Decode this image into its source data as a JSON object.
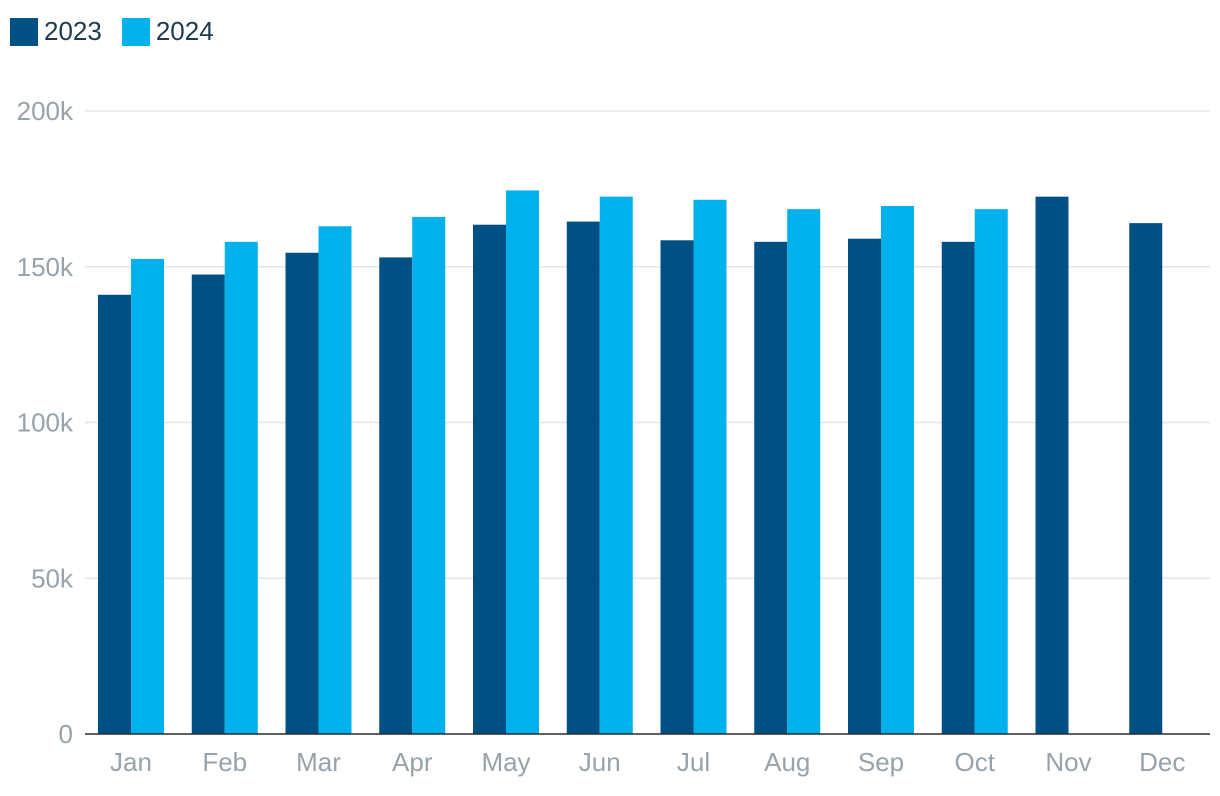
{
  "chart_data": {
    "type": "bar",
    "categories": [
      "Jan",
      "Feb",
      "Mar",
      "Apr",
      "May",
      "Jun",
      "Jul",
      "Aug",
      "Sep",
      "Oct",
      "Nov",
      "Dec"
    ],
    "series": [
      {
        "name": "2023",
        "color": "#005083",
        "values": [
          141000,
          147500,
          154500,
          153000,
          163500,
          164500,
          158500,
          158000,
          159000,
          158000,
          172500,
          164000
        ]
      },
      {
        "name": "2024",
        "color": "#00b1eb",
        "values": [
          152500,
          158000,
          163000,
          166000,
          174500,
          172500,
          171500,
          168500,
          169500,
          168500,
          null,
          null
        ]
      }
    ],
    "y_ticks": [
      0,
      50000,
      100000,
      150000,
      200000
    ],
    "y_tick_labels": [
      "0",
      "50k",
      "100k",
      "150k",
      "200k"
    ],
    "ylim": [
      0,
      200000
    ],
    "grid": true,
    "legend": "top-left",
    "title": "",
    "xlabel": "",
    "ylabel": ""
  }
}
